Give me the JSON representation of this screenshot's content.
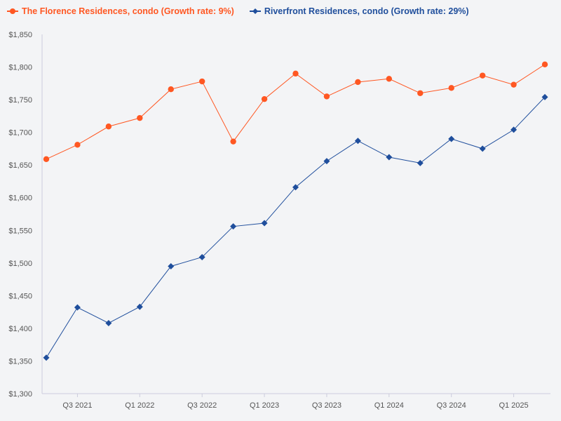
{
  "chart_data": {
    "type": "line",
    "title": "",
    "xlabel": "",
    "ylabel": "",
    "ylim": [
      1300,
      1850
    ],
    "y_ticks": [
      1300,
      1350,
      1400,
      1450,
      1500,
      1550,
      1600,
      1650,
      1700,
      1750,
      1800,
      1850
    ],
    "y_tick_labels": [
      "$1,300",
      "$1,350",
      "$1,400",
      "$1,450",
      "$1,500",
      "$1,550",
      "$1,600",
      "$1,650",
      "$1,700",
      "$1,750",
      "$1,800",
      "$1,850"
    ],
    "x": [
      "Q2 2021",
      "Q3 2021",
      "Q4 2021",
      "Q1 2022",
      "Q2 2022",
      "Q3 2022",
      "Q4 2022",
      "Q1 2023",
      "Q2 2023",
      "Q3 2023",
      "Q4 2023",
      "Q1 2024",
      "Q2 2024",
      "Q3 2024",
      "Q4 2024",
      "Q1 2025",
      "Q2 2025"
    ],
    "x_tick_labels": [
      "Q3 2021",
      "Q1 2022",
      "Q3 2022",
      "Q1 2023",
      "Q3 2023",
      "Q1 2024",
      "Q3 2024",
      "Q1 2025"
    ],
    "grid": false,
    "legend_position": "top-left",
    "series": [
      {
        "name": "The Florence Residences, condo (Growth rate: 9%)",
        "color": "#ff5722",
        "marker": "circle",
        "values": [
          1659,
          1681,
          1709,
          1722,
          1766,
          1778,
          1686,
          1751,
          1790,
          1755,
          1777,
          1782,
          1760,
          1768,
          1787,
          1773,
          1804
        ]
      },
      {
        "name": "Riverfront Residences, condo (Growth rate: 29%)",
        "color": "#1f4e9c",
        "marker": "diamond",
        "values": [
          1355,
          1432,
          1408,
          1433,
          1495,
          1509,
          1556,
          1561,
          1616,
          1656,
          1687,
          1662,
          1653,
          1690,
          1675,
          1704,
          1754
        ]
      }
    ]
  }
}
